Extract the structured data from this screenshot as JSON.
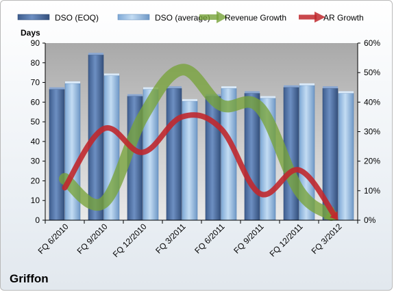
{
  "company": "Griffon",
  "chart_data": {
    "type": "bar",
    "title": "",
    "xlabel": "",
    "ylabel": "Days",
    "ylim": [
      0,
      90
    ],
    "y2lim": [
      0,
      60
    ],
    "y_ticks": [
      "0",
      "10",
      "20",
      "30",
      "40",
      "50",
      "60",
      "70",
      "80",
      "90"
    ],
    "y2_ticks": [
      "0%",
      "10%",
      "20%",
      "30%",
      "40%",
      "50%",
      "60%"
    ],
    "categories": [
      "FQ 6/2010",
      "FQ 9/2010",
      "FQ 12/2010",
      "FQ 3/2011",
      "FQ 6/2011",
      "FQ 9/2011",
      "FQ 12/2011",
      "FQ 3/2012"
    ],
    "legend_position": "top",
    "grid": false,
    "series": [
      {
        "name": "DSO (EOQ)",
        "kind": "bar",
        "axis": "left",
        "color": "#4f6fa0",
        "values": [
          66.5,
          84,
          63,
          67,
          63,
          64.5,
          67.5,
          67
        ]
      },
      {
        "name": "DSO (average)",
        "kind": "bar",
        "axis": "left",
        "color": "#9dc3e6",
        "values": [
          69.5,
          73.5,
          66.5,
          60.5,
          67,
          62,
          68.5,
          64.5
        ]
      },
      {
        "name": "Revenue Growth",
        "kind": "line",
        "axis": "right",
        "color": "#77a33a",
        "values": [
          14,
          6,
          35,
          51,
          39,
          38,
          10,
          0
        ]
      },
      {
        "name": "AR Growth",
        "kind": "line",
        "axis": "right",
        "color": "#c0282d",
        "values": [
          11,
          31,
          23,
          35,
          31,
          9,
          17,
          0
        ]
      }
    ]
  }
}
